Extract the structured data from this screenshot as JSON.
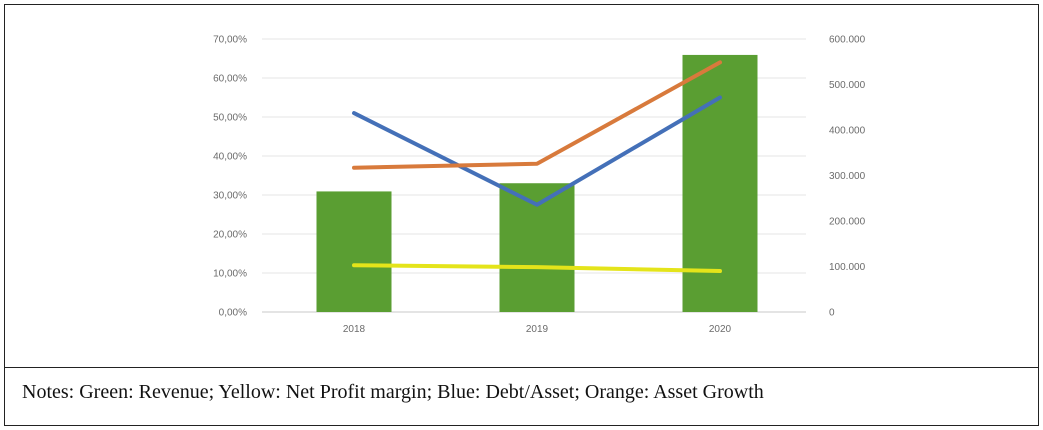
{
  "chart_data": {
    "type": "bar",
    "title": "",
    "xlabel": "",
    "ylabel": "",
    "categories": [
      "2018",
      "2019",
      "2020"
    ],
    "left_axis": {
      "ylim": [
        0,
        70
      ],
      "tick_labels": [
        "0,00%",
        "10,00%",
        "20,00%",
        "30,00%",
        "40,00%",
        "50,00%",
        "60,00%",
        "70,00%"
      ],
      "tick_values": [
        0,
        10,
        20,
        30,
        40,
        50,
        60,
        70
      ]
    },
    "right_axis": {
      "ylim": [
        0,
        600000
      ],
      "tick_labels": [
        "0",
        "100.000",
        "200.000",
        "300.000",
        "400.000",
        "500.000",
        "600.000"
      ],
      "tick_values": [
        0,
        100000,
        200000,
        300000,
        400000,
        500000,
        600000
      ]
    },
    "grid": true,
    "legend": "none",
    "series": [
      {
        "kind": "bar",
        "axis": "right",
        "color": "#5a9e32",
        "values": [
          265000,
          283000,
          565000
        ]
      },
      {
        "kind": "line",
        "axis": "left",
        "color": "#e4e41a",
        "values": [
          12,
          11.5,
          10.5
        ]
      },
      {
        "kind": "line",
        "axis": "left",
        "color": "#4470b8",
        "values": [
          51,
          27.5,
          55
        ]
      },
      {
        "kind": "line",
        "axis": "left",
        "color": "#d87a3c",
        "values": [
          37,
          38,
          64
        ]
      }
    ]
  },
  "notes": "Notes: Green: Revenue; Yellow: Net Profit margin; Blue: Debt/Asset; Orange: Asset Growth"
}
